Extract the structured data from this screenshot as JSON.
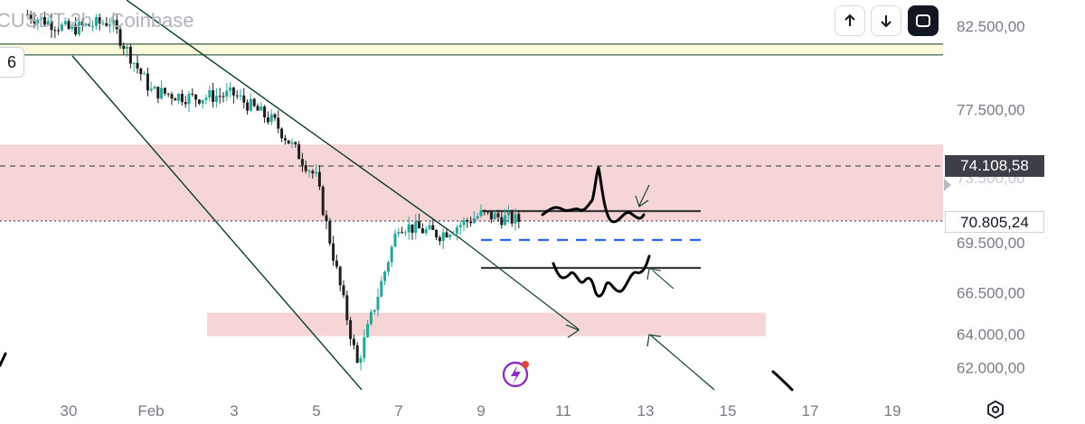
{
  "header": {
    "symbol": "CUSDT",
    "interval": "2h",
    "exchange": "Coinbase",
    "separator": "·"
  },
  "controls": {
    "up_icon": "arrow-up-icon",
    "down_icon": "arrow-down-icon",
    "fullscreen_icon": "fullscreen-icon"
  },
  "left_badge": "6",
  "price_labels": {
    "current": "74.108,58",
    "last": "70.805,24"
  },
  "colors": {
    "zone": "#f5d5d6",
    "candle_up": "#26a69a",
    "candle_down": "#1e1e1e",
    "blue_dash": "#2962ff",
    "axis_label_bg": "#3c3f47"
  },
  "chart_data": {
    "type": "candlestick",
    "y_axis": {
      "ticks": [
        "82.500,00",
        "77.500,00",
        "74.108,58",
        "70.805,24",
        "69.500,00",
        "66.500,00",
        "64.000,00",
        "62.000,00"
      ],
      "range": [
        61500,
        83500
      ]
    },
    "x_axis": {
      "ticks": [
        "30",
        "Feb",
        "3",
        "5",
        "7",
        "9",
        "11",
        "13",
        "15",
        "17",
        "19"
      ]
    },
    "horizontal_levels": [
      {
        "price": 81100,
        "style": "solid",
        "color": "#0d3b2a"
      },
      {
        "price": 74108.58,
        "style": "dashed",
        "color": "#555"
      },
      {
        "price": 70805.24,
        "style": "dotted",
        "color": "#555"
      }
    ],
    "zones": [
      {
        "from": 70805,
        "to": 75400
      },
      {
        "from": 63900,
        "to": 65300
      }
    ],
    "price_path": [
      {
        "x": "Jan 29",
        "y": 83200
      },
      {
        "x": "Jan 30",
        "y": 82300
      },
      {
        "x": "Jan 31",
        "y": 82800
      },
      {
        "x": "Feb 1",
        "y": 78600
      },
      {
        "x": "Feb 2",
        "y": 78200
      },
      {
        "x": "Feb 3",
        "y": 78400
      },
      {
        "x": "Feb 4",
        "y": 76700
      },
      {
        "x": "Feb 5",
        "y": 73400
      },
      {
        "x": "Feb 6",
        "y": 62200
      },
      {
        "x": "Feb 7",
        "y": 70600
      },
      {
        "x": "Feb 8",
        "y": 70000
      },
      {
        "x": "Feb 9",
        "y": 71200
      },
      {
        "x": "Feb 10",
        "y": 70800
      }
    ]
  }
}
